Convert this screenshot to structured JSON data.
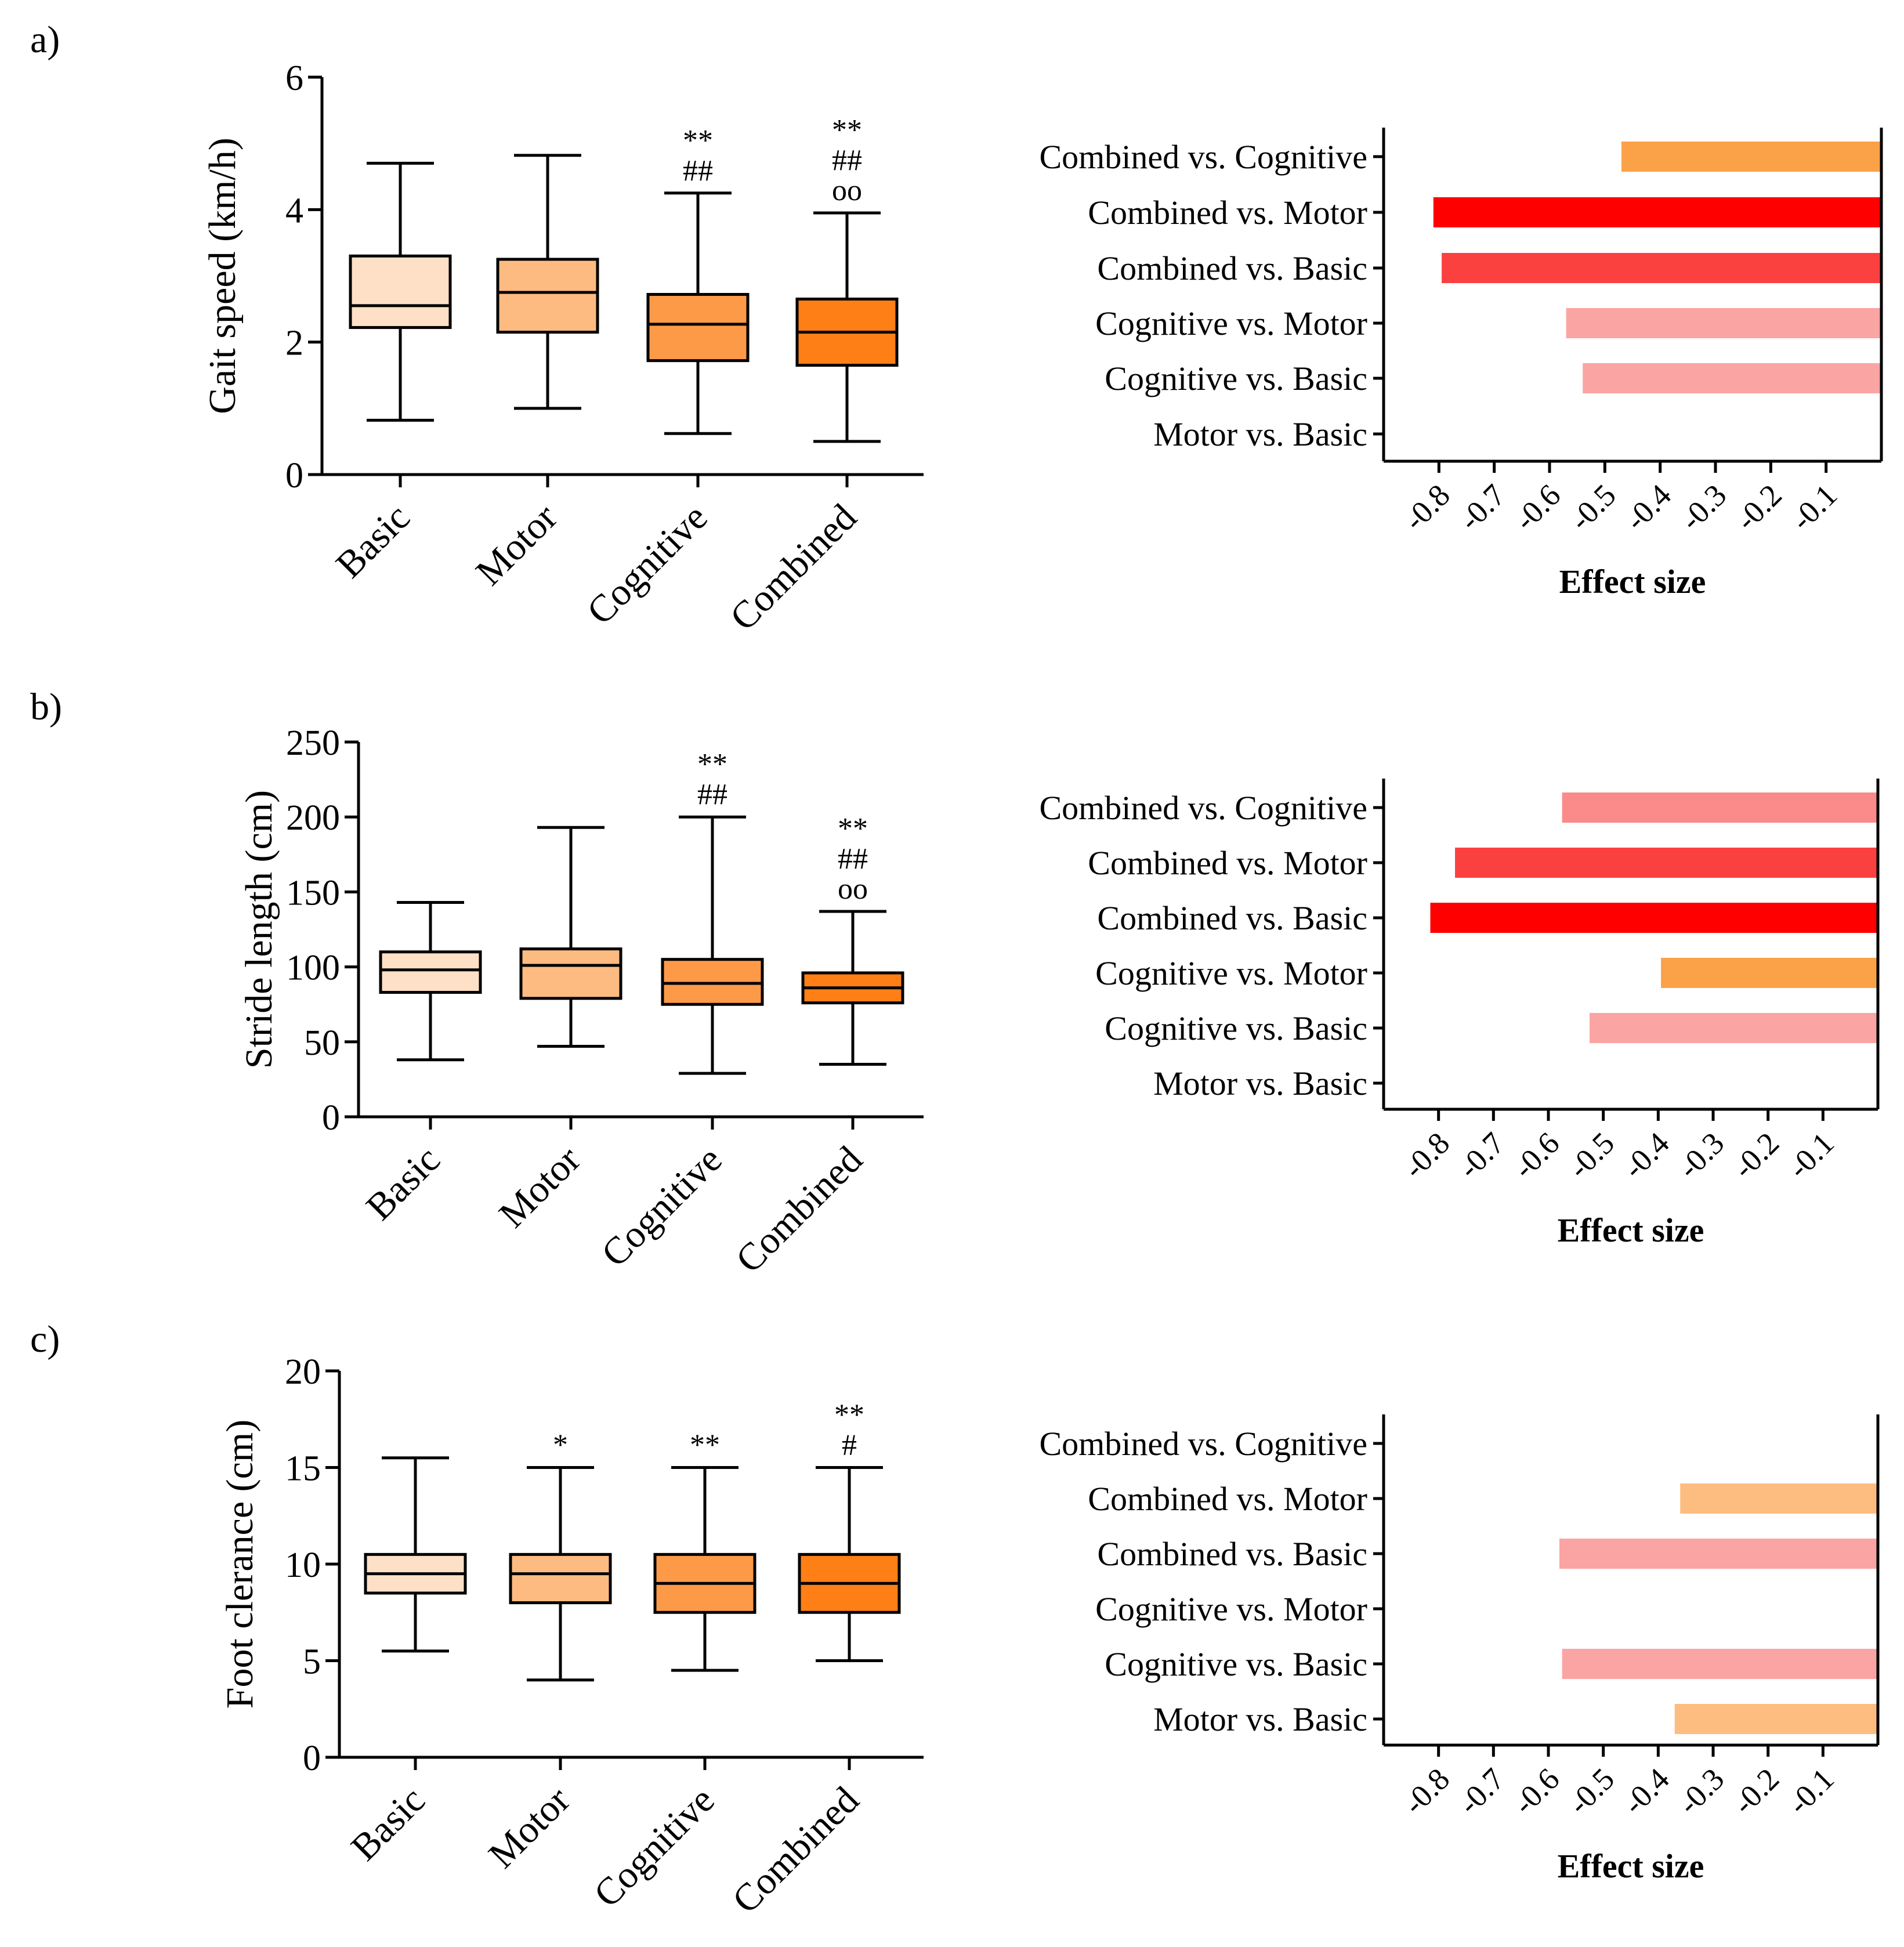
{
  "panel_labels": [
    "a)",
    "b)",
    "c)"
  ],
  "effect_title": "Effect size",
  "chart_data": [
    {
      "type": "boxplot",
      "panel": "a)",
      "ylabel": "Gait speed (km/h)",
      "ylim": [
        0,
        6
      ],
      "yticks": [
        0,
        2,
        4,
        6
      ],
      "categories": [
        "Basic",
        "Motor",
        "Cognitive",
        "Combined"
      ],
      "boxes": [
        {
          "min": 0.82,
          "q1": 2.22,
          "median": 2.55,
          "q3": 3.3,
          "max": 4.7,
          "color": "#fde0c5"
        },
        {
          "min": 1.0,
          "q1": 2.15,
          "median": 2.75,
          "q3": 3.25,
          "max": 4.82,
          "color": "#fdbb82"
        },
        {
          "min": 0.62,
          "q1": 1.72,
          "median": 2.27,
          "q3": 2.72,
          "max": 4.25,
          "color": "#fd9a48"
        },
        {
          "min": 0.5,
          "q1": 1.65,
          "median": 2.15,
          "q3": 2.65,
          "max": 3.95,
          "color": "#fd7f15"
        }
      ],
      "annotations": [
        [],
        [],
        [
          "**",
          "##"
        ],
        [
          "**",
          "##",
          "oo"
        ]
      ]
    },
    {
      "type": "boxplot",
      "panel": "b)",
      "ylabel": "Stride length (cm)",
      "ylim": [
        0,
        250
      ],
      "yticks": [
        0,
        50,
        100,
        150,
        200,
        250
      ],
      "categories": [
        "Basic",
        "Motor",
        "Cognitive",
        "Combined"
      ],
      "boxes": [
        {
          "min": 38,
          "q1": 83,
          "median": 98,
          "q3": 110,
          "max": 143,
          "color": "#fde0c5"
        },
        {
          "min": 47,
          "q1": 79,
          "median": 101,
          "q3": 112,
          "max": 193,
          "color": "#fdbb82"
        },
        {
          "min": 29,
          "q1": 75,
          "median": 89,
          "q3": 105,
          "max": 200,
          "color": "#fd9a48"
        },
        {
          "min": 35,
          "q1": 76,
          "median": 86,
          "q3": 96,
          "max": 137,
          "color": "#fd7f15"
        }
      ],
      "annotations": [
        [],
        [],
        [
          "**",
          "##"
        ],
        [
          "**",
          "##",
          "oo"
        ]
      ]
    },
    {
      "type": "boxplot",
      "panel": "c)",
      "ylabel": "Foot clerance (cm)",
      "ylim": [
        0,
        20
      ],
      "yticks": [
        0,
        5,
        10,
        15,
        20
      ],
      "categories": [
        "Basic",
        "Motor",
        "Cognitive",
        "Combined"
      ],
      "boxes": [
        {
          "min": 5.5,
          "q1": 8.5,
          "median": 9.5,
          "q3": 10.5,
          "max": 15.5,
          "color": "#fde0c5"
        },
        {
          "min": 4.0,
          "q1": 8.0,
          "median": 9.5,
          "q3": 10.5,
          "max": 15.0,
          "color": "#fdbb82"
        },
        {
          "min": 4.5,
          "q1": 7.5,
          "median": 9.0,
          "q3": 10.5,
          "max": 15.0,
          "color": "#fd9a48"
        },
        {
          "min": 5.0,
          "q1": 7.5,
          "median": 9.0,
          "q3": 10.5,
          "max": 15.0,
          "color": "#fd7f15"
        }
      ],
      "annotations": [
        [],
        [
          "*"
        ],
        [
          "**"
        ],
        [
          "**",
          "#"
        ]
      ]
    },
    {
      "type": "bar",
      "orientation": "horizontal",
      "panel": "a)",
      "xlabel": "Effect size",
      "xlim": [
        -0.9,
        0
      ],
      "xticks": [
        -0.8,
        -0.7,
        -0.6,
        -0.5,
        -0.4,
        -0.3,
        -0.2,
        -0.1
      ],
      "categories": [
        "Combined vs. Cognitive",
        "Combined vs. Motor",
        "Combined vs. Basic",
        "Cognitive vs. Motor",
        "Cognitive vs. Basic",
        "Motor vs. Basic"
      ],
      "values": [
        -0.47,
        -0.81,
        -0.795,
        -0.57,
        -0.54,
        0
      ],
      "colors": [
        "#fba148",
        "#fe0000",
        "#fb4040",
        "#fba4a4",
        "#fba4a4",
        "#ffffff"
      ]
    },
    {
      "type": "bar",
      "orientation": "horizontal",
      "panel": "b)",
      "xlabel": "Effect size",
      "xlim": [
        -0.9,
        0
      ],
      "xticks": [
        -0.8,
        -0.7,
        -0.6,
        -0.5,
        -0.4,
        -0.3,
        -0.2,
        -0.1
      ],
      "categories": [
        "Combined vs. Cognitive",
        "Combined vs. Motor",
        "Combined vs. Basic",
        "Cognitive vs. Motor",
        "Cognitive vs. Basic",
        "Motor vs. Basic"
      ],
      "values": [
        -0.575,
        -0.77,
        -0.815,
        -0.395,
        -0.525,
        0
      ],
      "colors": [
        "#fb8a8a",
        "#fb4040",
        "#fe0000",
        "#fba148",
        "#fba4a4",
        "#ffffff"
      ]
    },
    {
      "type": "bar",
      "orientation": "horizontal",
      "panel": "c)",
      "xlabel": "Effect size",
      "xlim": [
        -0.9,
        0
      ],
      "xticks": [
        -0.8,
        -0.7,
        -0.6,
        -0.5,
        -0.4,
        -0.3,
        -0.2,
        -0.1
      ],
      "categories": [
        "Combined vs. Cognitive",
        "Combined vs. Motor",
        "Combined vs. Basic",
        "Cognitive vs. Motor",
        "Cognitive vs. Basic",
        "Motor vs. Basic"
      ],
      "values": [
        0,
        -0.36,
        -0.58,
        0,
        -0.575,
        -0.37
      ],
      "colors": [
        "#ffffff",
        "#fdbd80",
        "#fba4a4",
        "#ffffff",
        "#fba4a4",
        "#fdbd80"
      ]
    }
  ]
}
